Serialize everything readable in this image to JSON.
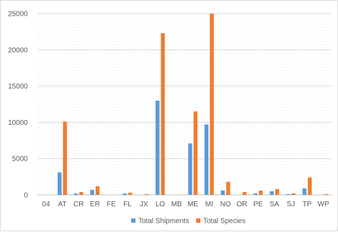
{
  "chart_data": {
    "type": "bar",
    "title": "",
    "xlabel": "",
    "ylabel": "",
    "ylim": [
      0,
      25000
    ],
    "yticks": [
      0,
      5000,
      10000,
      15000,
      20000,
      25000
    ],
    "grid": true,
    "legend_position": "bottom",
    "categories": [
      "04",
      "AT",
      "CR",
      "ER",
      "FE",
      "FL",
      "JX",
      "LO",
      "MB",
      "ME",
      "MI",
      "NO",
      "OR",
      "PE",
      "SA",
      "SJ",
      "TP",
      "WP"
    ],
    "series": [
      {
        "name": "Total Shipments",
        "color": "#5b9bd5",
        "values": [
          0,
          3100,
          200,
          700,
          0,
          200,
          0,
          13000,
          0,
          7100,
          9700,
          600,
          0,
          200,
          500,
          100,
          900,
          0
        ]
      },
      {
        "name": "Total Species",
        "color": "#ed7d31",
        "values": [
          0,
          10100,
          400,
          1200,
          0,
          300,
          100,
          22300,
          0,
          11500,
          25000,
          1800,
          400,
          600,
          800,
          200,
          2400,
          100
        ]
      }
    ]
  }
}
